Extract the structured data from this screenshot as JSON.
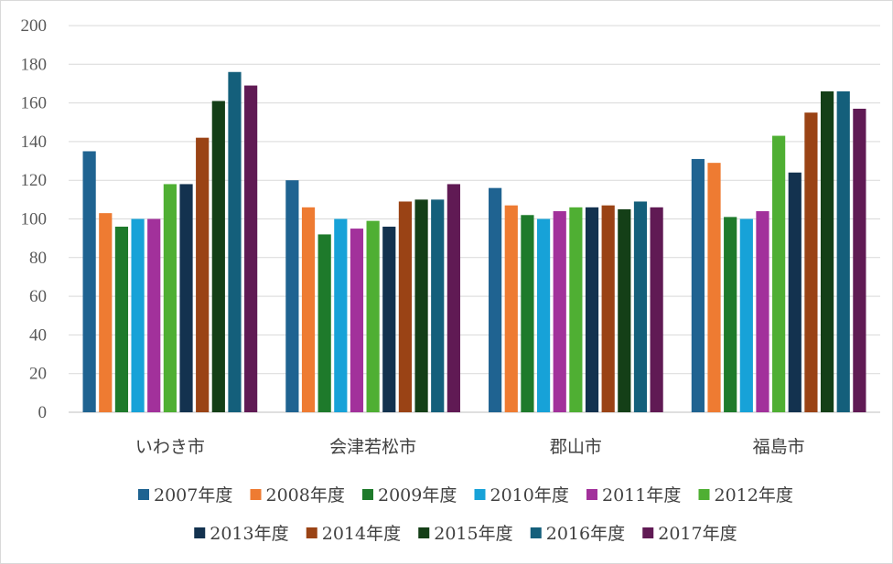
{
  "chart_data": {
    "type": "bar",
    "categories": [
      "いわき市",
      "会津若松市",
      "郡山市",
      "福島市"
    ],
    "ylim": [
      0,
      200
    ],
    "yticks": [
      0,
      20,
      40,
      60,
      80,
      100,
      120,
      140,
      160,
      180,
      200
    ],
    "grid": true,
    "legend_position": "bottom",
    "series": [
      {
        "name": "2007年度",
        "color": "#1f6391",
        "values": [
          135,
          120,
          116,
          131
        ]
      },
      {
        "name": "2008年度",
        "color": "#ee7b32",
        "values": [
          103,
          106,
          107,
          129
        ]
      },
      {
        "name": "2009年度",
        "color": "#1e7a2b",
        "values": [
          96,
          92,
          102,
          101
        ]
      },
      {
        "name": "2010年度",
        "color": "#17a2d8",
        "values": [
          100,
          100,
          100,
          100
        ]
      },
      {
        "name": "2011年度",
        "color": "#a2319b",
        "values": [
          100,
          95,
          104,
          104
        ]
      },
      {
        "name": "2012年度",
        "color": "#4faf33",
        "values": [
          118,
          99,
          106,
          143
        ]
      },
      {
        "name": "2013年度",
        "color": "#13324f",
        "values": [
          118,
          96,
          106,
          124
        ]
      },
      {
        "name": "2014年度",
        "color": "#9a4315",
        "values": [
          142,
          109,
          107,
          155
        ]
      },
      {
        "name": "2015年度",
        "color": "#143f17",
        "values": [
          161,
          110,
          105,
          166
        ]
      },
      {
        "name": "2016年度",
        "color": "#145f7b",
        "values": [
          176,
          110,
          109,
          166
        ]
      },
      {
        "name": "2017年度",
        "color": "#601a54",
        "values": [
          169,
          118,
          106,
          157
        ]
      }
    ]
  }
}
